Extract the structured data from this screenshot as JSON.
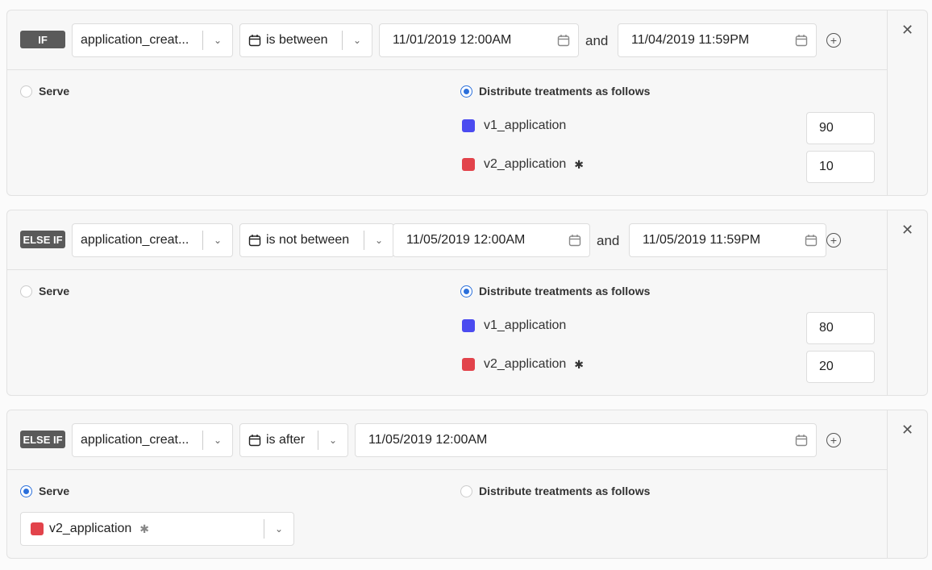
{
  "colors": {
    "v1": "#4b4bf0",
    "v2": "#e2434b",
    "radio_selected": "#2a6fdb"
  },
  "icons": {
    "calendar": "calendar-icon",
    "chevron": "chevron-down-icon",
    "add": "plus-circle-icon",
    "close": "close-icon",
    "star": "asterisk-icon"
  },
  "rules": [
    {
      "badge": "IF",
      "attribute": "application_creat...",
      "operator": "is between",
      "date1": "11/01/2019 12:00AM",
      "and": "and",
      "date2": "11/04/2019 11:59PM",
      "serve_label": "Serve",
      "distribute_label": "Distribute treatments as follows",
      "mode": "distribute",
      "treatments": [
        {
          "name": "v1_application",
          "value": "90"
        },
        {
          "name": "v2_application",
          "value": "10"
        }
      ]
    },
    {
      "badge": "ELSE IF",
      "attribute": "application_creat...",
      "operator": "is not between",
      "date1": "11/05/2019 12:00AM",
      "and": "and",
      "date2": "11/05/2019 11:59PM",
      "serve_label": "Serve",
      "distribute_label": "Distribute treatments as follows",
      "mode": "distribute",
      "treatments": [
        {
          "name": "v1_application",
          "value": "80"
        },
        {
          "name": "v2_application",
          "value": "20"
        }
      ]
    },
    {
      "badge": "ELSE IF",
      "attribute": "application_creat...",
      "operator": "is after",
      "date1": "11/05/2019 12:00AM",
      "serve_label": "Serve",
      "distribute_label": "Distribute treatments as follows",
      "mode": "serve",
      "served": "v2_application"
    }
  ]
}
